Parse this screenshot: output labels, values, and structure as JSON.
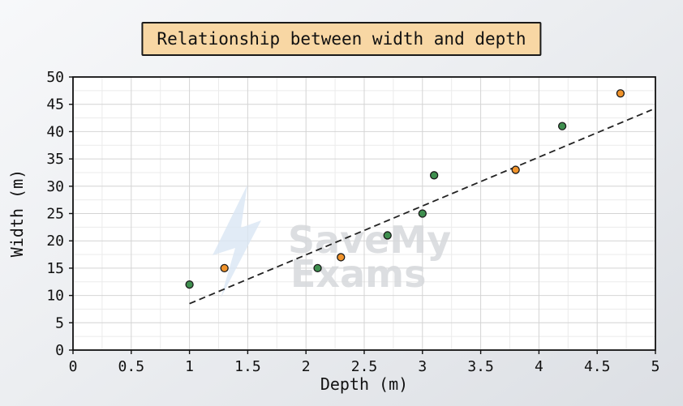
{
  "watermark": {
    "line1": "SaveMy",
    "line2": "Exams"
  },
  "colors": {
    "title_box_bg": "#f8d7a4",
    "plot_bg": "#ffffff",
    "grid_major": "#d4d4d4",
    "grid_minor": "#ebebeb",
    "point_green": "#3f8f4f",
    "point_orange": "#f0932b",
    "trend_line": "#222222"
  },
  "chart_data": {
    "type": "scatter",
    "title": "Relationship between width and depth",
    "xlabel": "Depth (m)",
    "ylabel": "Width (m)",
    "xlim": [
      0,
      5
    ],
    "ylim": [
      0,
      50
    ],
    "xticks": [
      0,
      0.5,
      1,
      1.5,
      2,
      2.5,
      3,
      3.5,
      4,
      4.5,
      5
    ],
    "yticks": [
      0,
      5,
      10,
      15,
      20,
      25,
      30,
      35,
      40,
      45,
      50
    ],
    "grid": true,
    "legend": "none",
    "series": [
      {
        "name": "green-points",
        "color": "#3f8f4f",
        "points": [
          [
            1.0,
            12
          ],
          [
            2.1,
            15
          ],
          [
            2.7,
            21
          ],
          [
            3.0,
            25
          ],
          [
            3.1,
            32
          ],
          [
            4.2,
            41
          ]
        ]
      },
      {
        "name": "orange-points",
        "color": "#f0932b",
        "points": [
          [
            1.3,
            15
          ],
          [
            2.3,
            17
          ],
          [
            3.8,
            33
          ],
          [
            4.7,
            47
          ]
        ]
      }
    ],
    "trend_line": {
      "style": "dashed",
      "color": "#222222",
      "from": [
        1.0,
        8.5
      ],
      "to": [
        4.97,
        44
      ]
    }
  }
}
